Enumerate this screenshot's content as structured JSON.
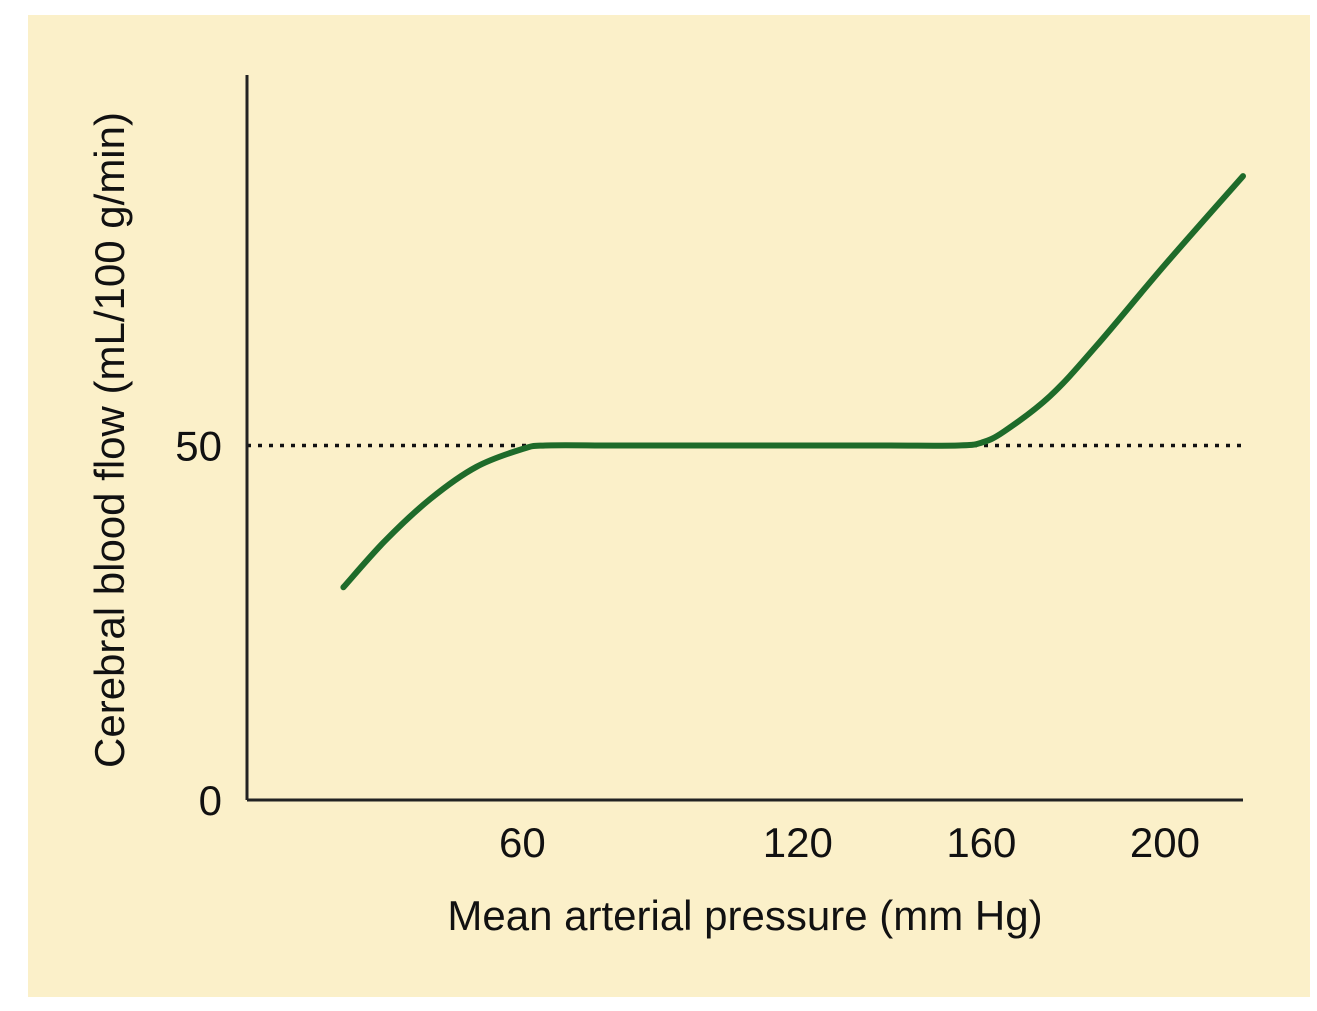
{
  "colors": {
    "panel_background": "#fbf0c9",
    "axis": "#222222",
    "curve": "#1e6b2a",
    "reference_line": "#111111"
  },
  "chart_data": {
    "type": "line",
    "title": "",
    "xlabel": "Mean arterial pressure (mm Hg)",
    "ylabel": "Cerebral blood flow (mL/100 g/min)",
    "xlim": [
      0,
      217
    ],
    "ylim": [
      0,
      100
    ],
    "x_ticks": [
      {
        "value": 60,
        "label": "60"
      },
      {
        "value": 120,
        "label": "120"
      },
      {
        "value": 160,
        "label": "160"
      },
      {
        "value": 200,
        "label": "200"
      }
    ],
    "y_ticks": [
      {
        "value": 0,
        "label": "0"
      },
      {
        "value": 50,
        "label": "50"
      }
    ],
    "reference_lines": [
      {
        "orientation": "horizontal",
        "y": 50,
        "style": "dotted"
      }
    ],
    "grid": false,
    "legend": "none",
    "series": [
      {
        "x": [
          21,
          30,
          40,
          50,
          60,
          65,
          80,
          100,
          120,
          140,
          155,
          160,
          165,
          175,
          185,
          200,
          217
        ],
        "values": [
          30,
          36.5,
          42.5,
          47,
          49.5,
          50,
          50,
          50,
          50,
          50,
          50,
          50.4,
          52,
          57,
          64,
          75.5,
          88
        ]
      }
    ]
  }
}
